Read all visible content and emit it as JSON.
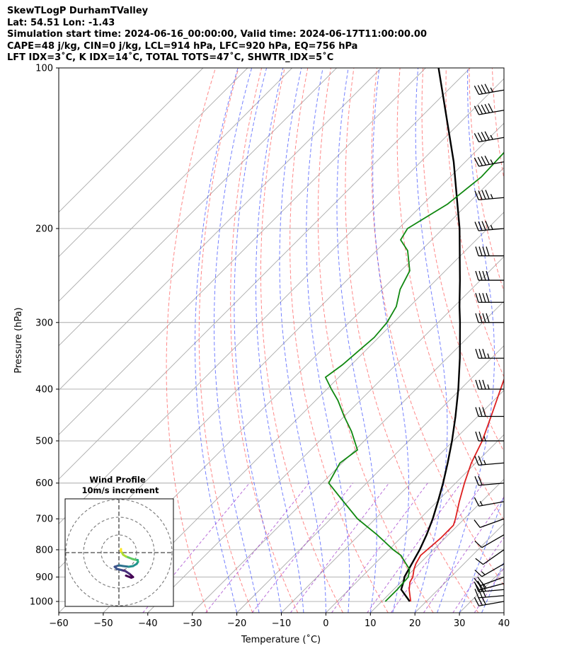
{
  "header": {
    "line1": "SkewTLogP DurhamTValley",
    "line2": "Lat: 54.51    Lon: -1.43",
    "line3": "Simulation start time: 2024-06-16_00:00:00, Valid time: 2024-06-17T11:00:00.00",
    "line4": "CAPE=48 j/kg, CIN=0 j/kg, LCL=914 hPa, LFC=920 hPa, EQ=756 hPa",
    "line5": "LFT IDX=3˚C, K IDX=14˚C, TOTAL TOTS=47˚C, SHWTR_IDX=5˚C"
  },
  "chart_data": {
    "type": "skew-t log-p",
    "xlabel": "Temperature (˚C)",
    "ylabel": "Pressure (hPa)",
    "xlim": [
      -60,
      40
    ],
    "ylim": [
      1050,
      100
    ],
    "xticks": [
      -60,
      -50,
      -40,
      -30,
      -20,
      -10,
      0,
      10,
      20,
      30,
      40
    ],
    "xtick_labels": [
      "−60",
      "−50",
      "−40",
      "−30",
      "−20",
      "−10",
      "0",
      "10",
      "20",
      "30",
      "40"
    ],
    "yticks": [
      1000,
      900,
      800,
      700,
      600,
      500,
      400,
      300,
      200,
      100
    ],
    "grid": true,
    "temperature": {
      "color": "#dd1f1f",
      "p": [
        1000,
        950,
        920,
        900,
        870,
        850,
        820,
        800,
        760,
        720,
        700,
        650,
        600,
        550,
        500,
        450,
        400,
        350,
        320,
        300,
        270,
        250,
        230,
        200,
        180,
        170,
        160,
        150,
        140,
        130,
        120,
        110,
        100
      ],
      "t": [
        16.5,
        13.5,
        12,
        11.5,
        10,
        9.2,
        8.4,
        8.6,
        9,
        9,
        8,
        5,
        2,
        -1,
        -3.5,
        -7,
        -11,
        -15.5,
        -18.5,
        -20,
        -22.5,
        -25.5,
        -28,
        -33,
        -36.5,
        -38.5,
        -41,
        -44,
        -47,
        -50.5,
        -54.5,
        -58.5,
        -63
      ]
    },
    "dewpoint": {
      "color": "#108810",
      "p": [
        1000,
        950,
        900,
        870,
        850,
        820,
        800,
        750,
        700,
        650,
        600,
        550,
        520,
        480,
        450,
        420,
        400,
        380,
        360,
        320,
        300,
        280,
        260,
        240,
        220,
        210,
        200,
        180,
        160,
        140,
        120,
        110,
        100
      ],
      "t": [
        10.8,
        10.8,
        10.5,
        9,
        7,
        4,
        1,
        -6,
        -14,
        -21,
        -28.5,
        -30.5,
        -29.5,
        -35,
        -40,
        -45,
        -49,
        -53,
        -52,
        -51,
        -51.5,
        -53,
        -56,
        -58,
        -63,
        -67,
        -68,
        -64.5,
        -63,
        -63.5,
        -64.5,
        -65.5,
        -67
      ]
    },
    "parcel": {
      "color": "#000000",
      "p": [
        1000,
        950,
        914,
        900,
        850,
        800,
        750,
        700,
        650,
        600,
        550,
        500,
        450,
        400,
        350,
        300,
        280,
        250,
        200,
        150,
        100
      ],
      "t": [
        16.3,
        11.7,
        10.3,
        9.6,
        8.3,
        6.9,
        5.1,
        2.9,
        0.2,
        -2.8,
        -6.3,
        -10.3,
        -15.0,
        -20.5,
        -27.1,
        -35.1,
        -38.8,
        -44.6,
        -56.3,
        -72.6,
        -97.1
      ]
    },
    "cape_fill_color": "#a6c8e0",
    "cin_fill_color": "#f4a8a8",
    "dry_adiabat_color": "#ff6b6b",
    "moist_adiabat_color": "#3b4cff",
    "mixing_ratio_color": "#9b30c9",
    "isotherm_color": "#aaaaaa",
    "wind_barbs": {
      "p": [
        1000,
        975,
        950,
        925,
        900,
        850,
        800,
        750,
        700,
        650,
        600,
        550,
        500,
        450,
        400,
        350,
        300,
        275,
        250,
        225,
        200,
        175,
        150,
        135,
        120,
        110
      ],
      "speed_kt": [
        30,
        30,
        30,
        25,
        20,
        15,
        10,
        10,
        10,
        15,
        20,
        25,
        25,
        30,
        35,
        35,
        40,
        40,
        40,
        40,
        45,
        45,
        45,
        45,
        50,
        45
      ],
      "dir_deg": [
        260,
        265,
        265,
        255,
        250,
        240,
        235,
        240,
        250,
        260,
        265,
        265,
        270,
        270,
        270,
        270,
        270,
        270,
        270,
        270,
        265,
        265,
        260,
        260,
        260,
        260
      ]
    },
    "hodograph": {
      "title_line1": "Wind Profile",
      "title_line2": "10m/s increment",
      "u": [
        2.0,
        3.5,
        4.0,
        3.0,
        1.8,
        0.6,
        -0.6,
        -1.2,
        0.0,
        1.2,
        2.8,
        4.0,
        5.0,
        5.4,
        5.3,
        4.6,
        3.8,
        2.8,
        2.0,
        1.2,
        0.6,
        0.6,
        0.5
      ],
      "v": [
        -6.5,
        -7.1,
        -6.9,
        -6.0,
        -5.2,
        -4.9,
        -4.6,
        -4.0,
        -3.6,
        -3.8,
        -4.0,
        -3.8,
        -3.2,
        -2.6,
        -2.1,
        -2.0,
        -1.8,
        -1.4,
        -1.1,
        -0.6,
        0.4,
        1.0,
        0.5
      ],
      "colormap": "viridis"
    }
  }
}
